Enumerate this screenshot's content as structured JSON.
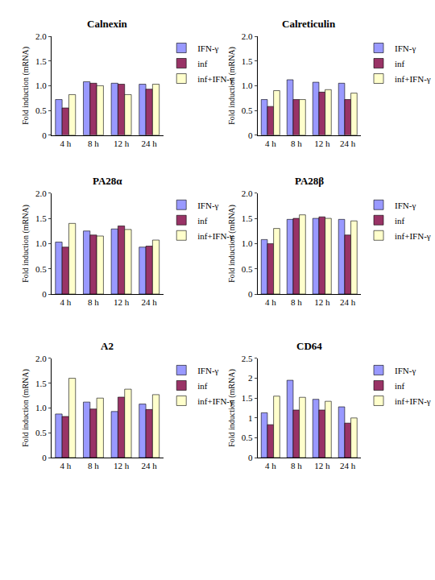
{
  "chart_data": [
    {
      "type": "bar",
      "title": "Calnexin",
      "y_label": "Fold induction (mRNA)",
      "categories": [
        "4 h",
        "8 h",
        "12 h",
        "24 h"
      ],
      "series": [
        {
          "name": "IFN-γ",
          "color": "#9999ff",
          "values": [
            0.72,
            1.08,
            1.05,
            1.03
          ]
        },
        {
          "name": "inf",
          "color": "#993366",
          "values": [
            0.55,
            1.05,
            1.03,
            0.93
          ]
        },
        {
          "name": "inf+IFN-γ",
          "color": "#ffffcc",
          "values": [
            0.82,
            1.0,
            0.82,
            1.03
          ]
        }
      ],
      "ylim": [
        0,
        2
      ],
      "yticks": [
        0,
        0.5,
        {
          "value": 1,
          "label": "1.0"
        },
        1.5,
        {
          "value": 2,
          "label": "2.0"
        }
      ],
      "grid": false,
      "legend": "right"
    },
    {
      "type": "bar",
      "title": "Calreticulin",
      "y_label": "Fold induction (mRNA)",
      "categories": [
        "4 h",
        "8 h",
        "12 h",
        "24 h"
      ],
      "series": [
        {
          "name": "IFN-γ",
          "color": "#9999ff",
          "values": [
            0.72,
            1.12,
            1.07,
            1.05
          ]
        },
        {
          "name": "inf",
          "color": "#993366",
          "values": [
            0.58,
            0.72,
            0.87,
            0.72
          ]
        },
        {
          "name": "inf+IFN-γ",
          "color": "#ffffcc",
          "values": [
            0.9,
            0.72,
            0.92,
            0.85
          ]
        }
      ],
      "ylim": [
        0,
        2
      ],
      "yticks": [
        0,
        0.5,
        {
          "value": 1,
          "label": "1.0"
        },
        1.5,
        {
          "value": 2,
          "label": "2.0"
        }
      ],
      "grid": false,
      "legend": "right"
    },
    {
      "type": "bar",
      "title": "PA28α",
      "y_label": "Fold induction (mRNA)",
      "categories": [
        "4 h",
        "8 h",
        "12 h",
        "24 h"
      ],
      "series": [
        {
          "name": "IFN-γ",
          "color": "#9999ff",
          "values": [
            1.03,
            1.25,
            1.29,
            0.93
          ]
        },
        {
          "name": "inf",
          "color": "#993366",
          "values": [
            0.93,
            1.17,
            1.35,
            0.95
          ]
        },
        {
          "name": "inf+IFN-γ",
          "color": "#ffffcc",
          "values": [
            1.4,
            1.15,
            1.28,
            1.07
          ]
        }
      ],
      "ylim": [
        0,
        2
      ],
      "yticks": [
        0,
        0.5,
        {
          "value": 1,
          "label": "1.0"
        },
        1.5,
        {
          "value": 2,
          "label": "2.0"
        }
      ],
      "grid": false,
      "legend": "right"
    },
    {
      "type": "bar",
      "title": "PA28β",
      "y_label": "Fold induction (mRNA)",
      "categories": [
        "4 h",
        "8 h",
        "12 h",
        "24 h"
      ],
      "series": [
        {
          "name": "IFN-γ",
          "color": "#9999ff",
          "values": [
            1.08,
            1.48,
            1.5,
            1.48
          ]
        },
        {
          "name": "inf",
          "color": "#993366",
          "values": [
            1.0,
            1.5,
            1.53,
            1.17
          ]
        },
        {
          "name": "inf+IFN-γ",
          "color": "#ffffcc",
          "values": [
            1.3,
            1.57,
            1.5,
            1.45
          ]
        }
      ],
      "ylim": [
        0,
        2
      ],
      "yticks": [
        0,
        0.5,
        {
          "value": 1,
          "label": "1.0"
        },
        1.5,
        {
          "value": 2,
          "label": "2.0"
        }
      ],
      "grid": false,
      "legend": "right"
    },
    {
      "type": "bar",
      "title": "A2",
      "y_label": "Fold induction (mRNA)",
      "categories": [
        "4 h",
        "8 h",
        "12 h",
        "24 h"
      ],
      "series": [
        {
          "name": "IFN-γ",
          "color": "#9999ff",
          "values": [
            0.88,
            1.12,
            0.93,
            1.08
          ]
        },
        {
          "name": "inf",
          "color": "#993366",
          "values": [
            0.83,
            0.98,
            1.22,
            0.97
          ]
        },
        {
          "name": "inf+IFN-γ",
          "color": "#ffffcc",
          "values": [
            1.6,
            1.2,
            1.38,
            1.27
          ]
        }
      ],
      "ylim": [
        0,
        2
      ],
      "yticks": [
        0,
        0.5,
        {
          "value": 1,
          "label": "1.0"
        },
        1.5,
        {
          "value": 2,
          "label": "2.0"
        }
      ],
      "grid": false,
      "legend": "right"
    },
    {
      "type": "bar",
      "title": "CD64",
      "y_label": "Fold induction (mRNA)",
      "categories": [
        "4 h",
        "8 h",
        "12 h",
        "24 h"
      ],
      "series": [
        {
          "name": "IFN-γ",
          "color": "#9999ff",
          "values": [
            1.13,
            1.95,
            1.47,
            1.28
          ]
        },
        {
          "name": "inf",
          "color": "#993366",
          "values": [
            0.83,
            1.2,
            1.2,
            0.87
          ]
        },
        {
          "name": "inf+IFN-γ",
          "color": "#ffffcc",
          "values": [
            1.55,
            1.52,
            1.42,
            1.0
          ]
        }
      ],
      "ylim": [
        0,
        2.5
      ],
      "yticks": [
        0,
        0.5,
        1,
        1.5,
        2,
        2.5
      ],
      "grid": false,
      "legend": "right"
    }
  ]
}
